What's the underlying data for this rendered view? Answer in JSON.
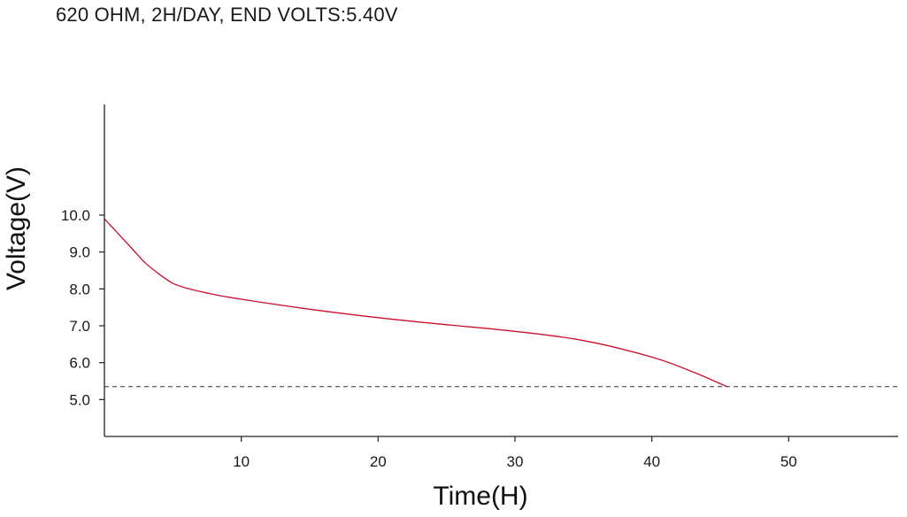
{
  "chart_data": {
    "type": "line",
    "title": "620 OHM, 2H/DAY, END VOLTS:5.40V",
    "xlabel": "Time(H)",
    "ylabel": "Voltage(V)",
    "xlim": [
      0,
      58
    ],
    "ylim": [
      4.0,
      13.0
    ],
    "x_ticks": [
      10,
      20,
      30,
      40,
      50
    ],
    "x_tick_labels": [
      "10",
      "20",
      "30",
      "40",
      "50"
    ],
    "y_ticks": [
      5.0,
      6.0,
      7.0,
      8.0,
      9.0,
      10.0
    ],
    "y_tick_labels": [
      "5.0",
      "6.0",
      "7.0",
      "8.0",
      "9.0",
      "10.0"
    ],
    "grid": false,
    "series": [
      {
        "color": "#c8102e",
        "x": [
          0,
          1,
          2,
          3,
          4,
          5,
          6,
          8,
          10,
          15,
          20,
          25,
          30,
          35,
          40,
          43,
          45.5
        ],
        "y": [
          9.9,
          9.5,
          9.1,
          8.7,
          8.4,
          8.15,
          8.02,
          7.85,
          7.72,
          7.45,
          7.22,
          7.03,
          6.85,
          6.6,
          6.15,
          5.75,
          5.35
        ]
      }
    ],
    "reference_lines": [
      {
        "y": 5.35,
        "style": "dashed",
        "color": "#333333"
      }
    ]
  }
}
